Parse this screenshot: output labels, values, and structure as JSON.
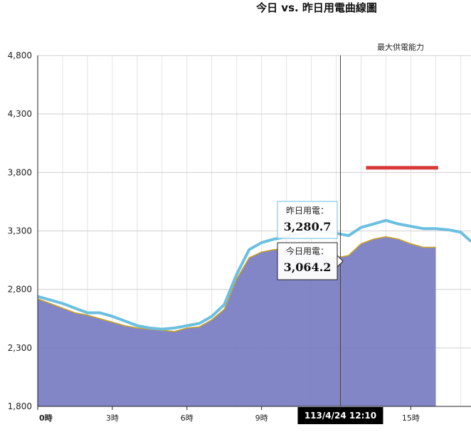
{
  "chart_data": {
    "type": "area",
    "title": "今日 vs. 昨日用電曲線圖",
    "ylim": [
      1800,
      4800
    ],
    "yticks": [
      1800,
      2300,
      2800,
      3300,
      3800,
      4300,
      4800
    ],
    "ytick_labels": [
      "1,800",
      "2,300",
      "2,800",
      "3,300",
      "3,800",
      "4,300",
      "4,800"
    ],
    "xlim": [
      0,
      17.42
    ],
    "xticks": [
      {
        "hour": 0,
        "label": "0時"
      },
      {
        "hour": 3,
        "label": "3時"
      },
      {
        "hour": 6,
        "label": "6時"
      },
      {
        "hour": 9,
        "label": "9時"
      },
      {
        "hour": 15,
        "label": "15時"
      }
    ],
    "series": [
      {
        "name": "昨日用電",
        "color": "#6bbfe0",
        "x": [
          0,
          0.5,
          1,
          1.5,
          2,
          2.5,
          3,
          3.5,
          4,
          4.5,
          5,
          5.5,
          6,
          6.5,
          7,
          7.5,
          8,
          8.5,
          9,
          9.5,
          10,
          10.5,
          11,
          11.5,
          12,
          12.5,
          13,
          13.5,
          14,
          14.5,
          15,
          15.5,
          16,
          16.5,
          17,
          17.42
        ],
        "y": [
          2740,
          2710,
          2680,
          2640,
          2600,
          2600,
          2570,
          2530,
          2490,
          2470,
          2460,
          2470,
          2490,
          2510,
          2570,
          2670,
          2930,
          3140,
          3200,
          3230,
          3250,
          3270,
          3300,
          3290,
          3280,
          3260,
          3330,
          3360,
          3390,
          3360,
          3340,
          3320,
          3320,
          3310,
          3290,
          3210
        ]
      },
      {
        "name": "今日用電",
        "color": "#7b7fc4",
        "x": [
          0,
          0.5,
          1,
          1.5,
          2,
          2.5,
          3,
          3.5,
          4,
          4.5,
          5,
          5.5,
          6,
          6.5,
          7,
          7.5,
          8,
          8.5,
          9,
          9.5,
          10,
          10.5,
          11,
          11.5,
          12,
          12.5,
          13,
          13.5,
          14,
          14.5,
          15,
          15.5,
          16
        ],
        "y": [
          2720,
          2680,
          2640,
          2600,
          2580,
          2550,
          2520,
          2490,
          2470,
          2460,
          2450,
          2440,
          2470,
          2480,
          2540,
          2630,
          2890,
          3070,
          3120,
          3140,
          3150,
          3140,
          3130,
          3090,
          3070,
          3090,
          3190,
          3230,
          3250,
          3230,
          3190,
          3160,
          3160
        ]
      }
    ],
    "max_supply": {
      "label": "最大供電能力",
      "value": 3840,
      "x_start": 13.2,
      "x_end": 16.1,
      "color": "#d83a3a"
    },
    "crosshair": {
      "hour": 12.17,
      "label": "113/4/24 12:10"
    },
    "tooltips": [
      {
        "label": "昨日用電：",
        "value": "3,280.7"
      },
      {
        "label": "今日用電：",
        "value": "3,064.2"
      }
    ],
    "grid": true
  }
}
